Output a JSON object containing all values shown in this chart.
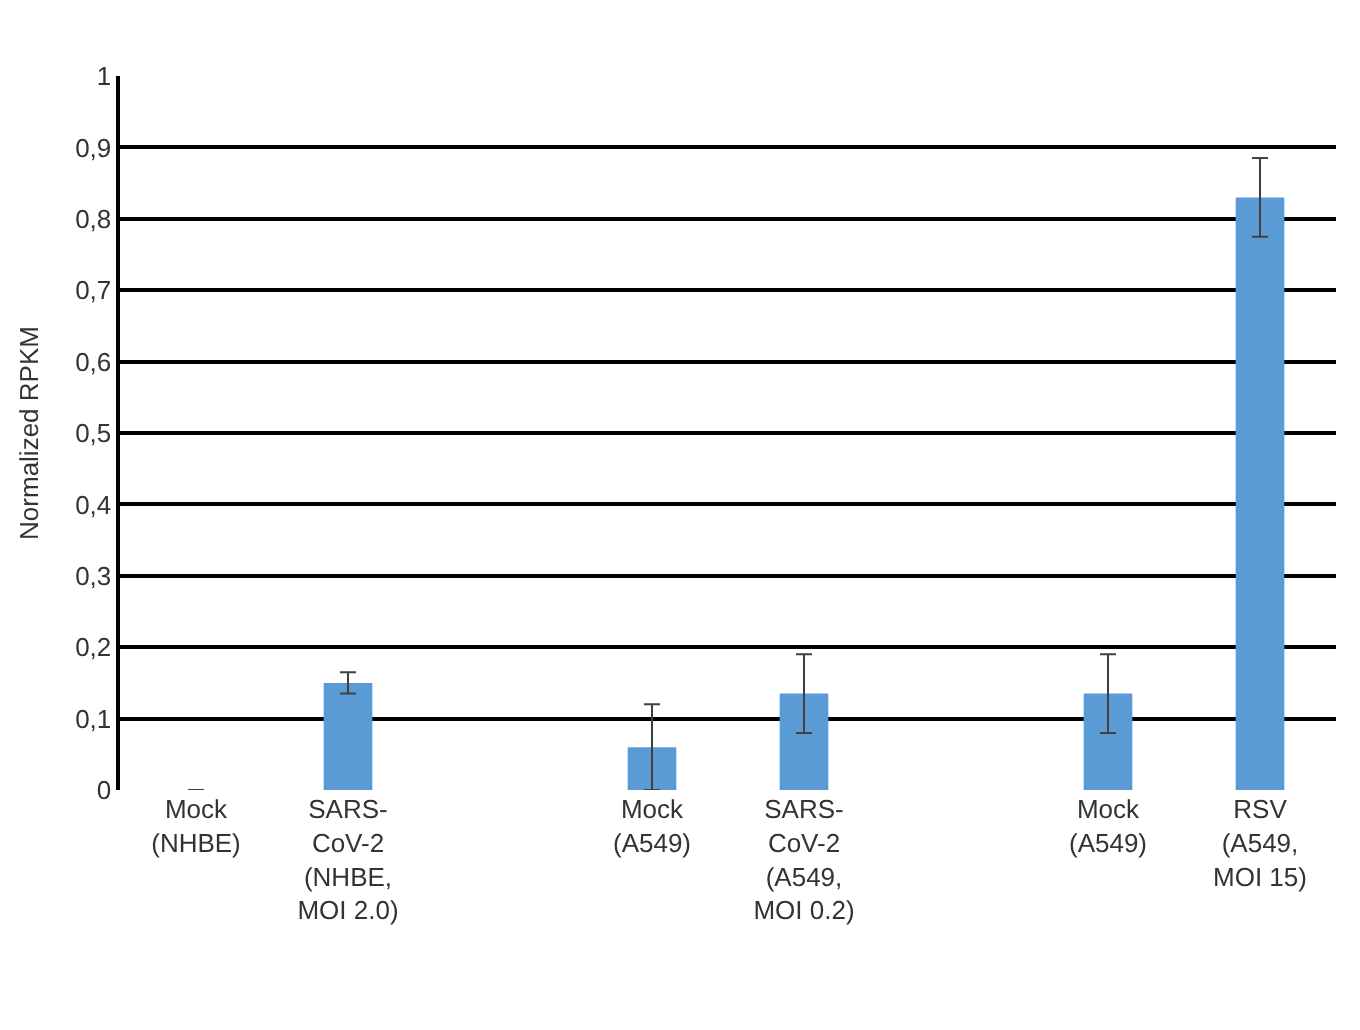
{
  "chart_data": {
    "type": "bar",
    "ylabel": "Normalized RPKM",
    "categories": [
      "Mock\n(NHBE)",
      "SARS-\nCoV-2\n(NHBE,\nMOI 2.0)",
      null,
      "Mock\n(A549)",
      "SARS-\nCoV-2\n(A549,\nMOI 0.2)",
      null,
      "Mock\n(A549)",
      "RSV\n(A549,\nMOI 15)"
    ],
    "values": [
      0,
      0.15,
      null,
      0.06,
      0.135,
      null,
      0.135,
      0.83
    ],
    "errors": [
      null,
      0.015,
      null,
      0.06,
      0.055,
      null,
      0.055,
      0.055
    ],
    "color": "#5b9bd5",
    "ylim": [
      0,
      1
    ],
    "yticks": [
      0,
      {
        "value": 0.1,
        "label": "0,1"
      },
      {
        "value": 0.2,
        "label": "0,2"
      },
      {
        "value": 0.3,
        "label": "0,3"
      },
      {
        "value": 0.4,
        "label": "0,4"
      },
      {
        "value": 0.5,
        "label": "0,5"
      },
      {
        "value": 0.6,
        "label": "0,6"
      },
      {
        "value": 0.7,
        "label": "0,7"
      },
      {
        "value": 0.8,
        "label": "0,8"
      },
      {
        "value": 0.9,
        "label": "0,9"
      },
      1
    ],
    "grid": "y"
  }
}
